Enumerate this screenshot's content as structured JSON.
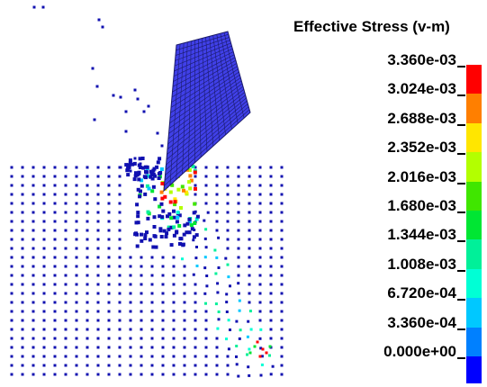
{
  "legend": {
    "title": "Effective Stress (v-m)",
    "ticks": [
      "3.360e-03",
      "3.024e-03",
      "2.688e-03",
      "2.352e-03",
      "2.016e-03",
      "1.680e-03",
      "1.344e-03",
      "1.008e-03",
      "6.720e-04",
      "3.360e-04",
      "0.000e+00"
    ],
    "colors": [
      "#ff0000",
      "#ff7f00",
      "#ffe600",
      "#b3ff00",
      "#40e600",
      "#00e633",
      "#00f099",
      "#00ffd5",
      "#00c8ff",
      "#0080ff",
      "#0000ff"
    ]
  },
  "scene": {
    "tool_color": "#4040e8",
    "tool_edge": "#1a1a6a",
    "particle_color": "#1010b0"
  }
}
